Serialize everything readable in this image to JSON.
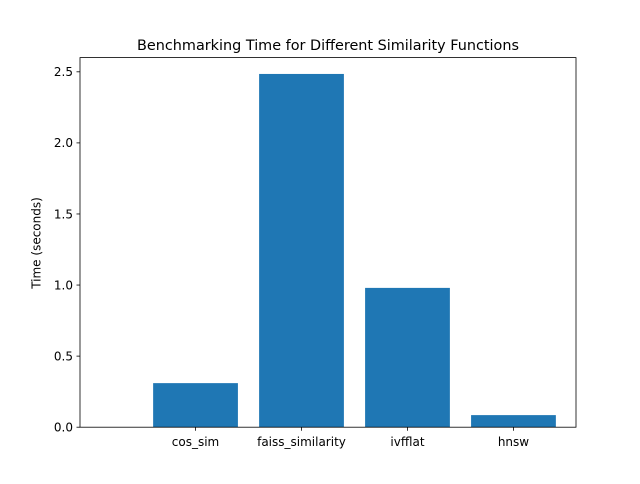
{
  "chart_data": {
    "type": "bar",
    "title": "Benchmarking Time for Different Similarity Functions",
    "xlabel": "",
    "ylabel": "Time (seconds)",
    "categories": [
      "cos_sim",
      "faiss_similarity",
      "ivfflat",
      "hnsw"
    ],
    "values": [
      0.31,
      2.485,
      0.98,
      0.085
    ],
    "ylim": [
      0,
      2.6
    ],
    "yticks": [
      0.0,
      0.5,
      1.0,
      1.5,
      2.0,
      2.5
    ],
    "ytick_labels": [
      "0.0",
      "0.5",
      "1.0",
      "1.5",
      "2.0",
      "2.5"
    ],
    "bar_color": "#1f77b4",
    "grid": false,
    "legend": "none"
  }
}
